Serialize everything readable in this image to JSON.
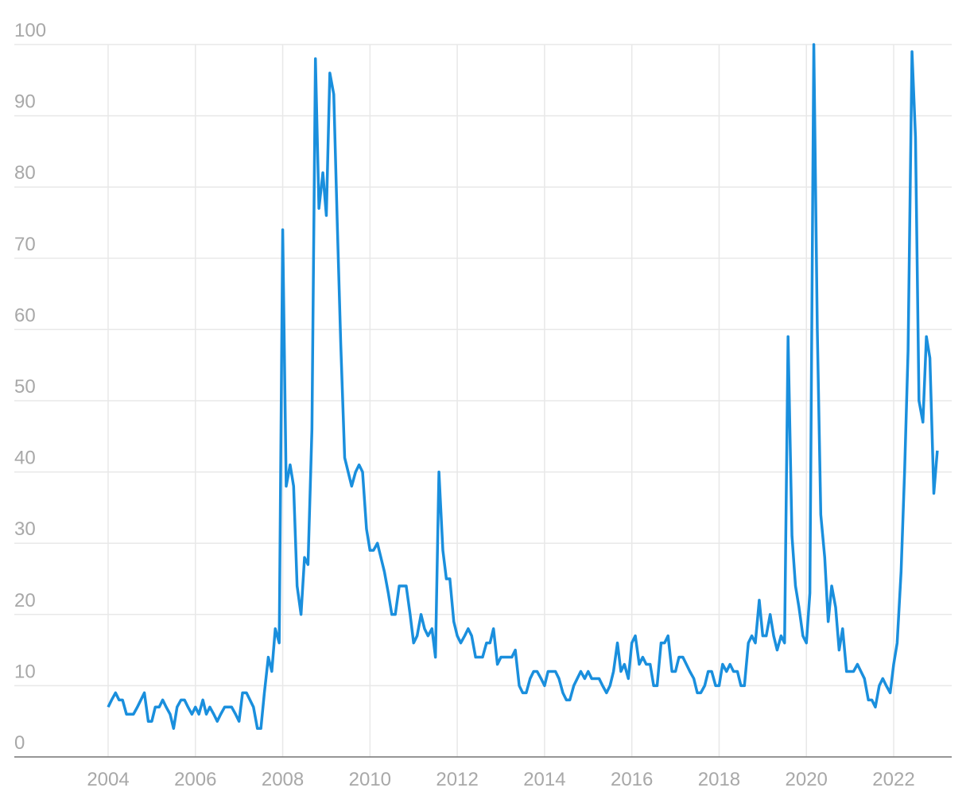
{
  "chart_data": {
    "type": "line",
    "x": [
      2004,
      2004.08,
      2004.17,
      2004.25,
      2004.33,
      2004.42,
      2004.5,
      2004.58,
      2004.67,
      2004.75,
      2004.83,
      2004.92,
      2005,
      2005.08,
      2005.17,
      2005.25,
      2005.33,
      2005.42,
      2005.5,
      2005.58,
      2005.67,
      2005.75,
      2005.83,
      2005.92,
      2006,
      2006.08,
      2006.17,
      2006.25,
      2006.33,
      2006.42,
      2006.5,
      2006.58,
      2006.67,
      2006.75,
      2006.83,
      2006.92,
      2007,
      2007.08,
      2007.17,
      2007.25,
      2007.33,
      2007.42,
      2007.5,
      2007.58,
      2007.67,
      2007.75,
      2007.83,
      2007.92,
      2008,
      2008.08,
      2008.17,
      2008.25,
      2008.33,
      2008.42,
      2008.5,
      2008.58,
      2008.67,
      2008.75,
      2008.83,
      2008.92,
      2009,
      2009.08,
      2009.17,
      2009.25,
      2009.33,
      2009.42,
      2009.5,
      2009.58,
      2009.67,
      2009.75,
      2009.83,
      2009.92,
      2010,
      2010.08,
      2010.17,
      2010.25,
      2010.33,
      2010.42,
      2010.5,
      2010.58,
      2010.67,
      2010.75,
      2010.83,
      2010.92,
      2011,
      2011.08,
      2011.17,
      2011.25,
      2011.33,
      2011.42,
      2011.5,
      2011.58,
      2011.67,
      2011.75,
      2011.83,
      2011.92,
      2012,
      2012.08,
      2012.17,
      2012.25,
      2012.33,
      2012.42,
      2012.5,
      2012.58,
      2012.67,
      2012.75,
      2012.83,
      2012.92,
      2013,
      2013.08,
      2013.17,
      2013.25,
      2013.33,
      2013.42,
      2013.5,
      2013.58,
      2013.67,
      2013.75,
      2013.83,
      2013.92,
      2014,
      2014.08,
      2014.17,
      2014.25,
      2014.33,
      2014.42,
      2014.5,
      2014.58,
      2014.67,
      2014.75,
      2014.83,
      2014.92,
      2015,
      2015.08,
      2015.17,
      2015.25,
      2015.33,
      2015.42,
      2015.5,
      2015.58,
      2015.67,
      2015.75,
      2015.83,
      2015.92,
      2016,
      2016.08,
      2016.17,
      2016.25,
      2016.33,
      2016.42,
      2016.5,
      2016.58,
      2016.67,
      2016.75,
      2016.83,
      2016.92,
      2017,
      2017.08,
      2017.17,
      2017.25,
      2017.33,
      2017.42,
      2017.5,
      2017.58,
      2017.67,
      2017.75,
      2017.83,
      2017.92,
      2018,
      2018.08,
      2018.17,
      2018.25,
      2018.33,
      2018.42,
      2018.5,
      2018.58,
      2018.67,
      2018.75,
      2018.83,
      2018.92,
      2019,
      2019.08,
      2019.17,
      2019.25,
      2019.33,
      2019.42,
      2019.5,
      2019.58,
      2019.67,
      2019.75,
      2019.83,
      2019.92,
      2020,
      2020.08,
      2020.17,
      2020.25,
      2020.33,
      2020.42,
      2020.5,
      2020.58,
      2020.67,
      2020.75,
      2020.83,
      2020.92,
      2021,
      2021.08,
      2021.17,
      2021.25,
      2021.33,
      2021.42,
      2021.5,
      2021.58,
      2021.67,
      2021.75,
      2021.83,
      2021.92,
      2022,
      2022.08,
      2022.17,
      2022.25,
      2022.33,
      2022.42,
      2022.5,
      2022.58,
      2022.67,
      2022.75,
      2022.83,
      2022.92,
      2023
    ],
    "series": [
      {
        "color": "#1a8fdd",
        "values": [
          7,
          8,
          9,
          8,
          8,
          6,
          6,
          6,
          7,
          8,
          9,
          5,
          5,
          7,
          7,
          8,
          7,
          6,
          4,
          7,
          8,
          8,
          7,
          6,
          7,
          6,
          8,
          6,
          7,
          6,
          5,
          6,
          7,
          7,
          7,
          6,
          5,
          9,
          9,
          8,
          7,
          4,
          4,
          9,
          14,
          12,
          18,
          16,
          74,
          38,
          41,
          38,
          24,
          20,
          28,
          27,
          46,
          98,
          77,
          82,
          76,
          96,
          93,
          75,
          58,
          42,
          40,
          38,
          40,
          41,
          40,
          32,
          29,
          29,
          30,
          28,
          26,
          23,
          20,
          20,
          24,
          24,
          24,
          20,
          16,
          17,
          20,
          18,
          17,
          18,
          14,
          40,
          29,
          25,
          25,
          19,
          17,
          16,
          17,
          18,
          17,
          14,
          14,
          14,
          16,
          16,
          18,
          13,
          14,
          14,
          14,
          14,
          15,
          10,
          9,
          9,
          11,
          12,
          12,
          11,
          10,
          12,
          12,
          12,
          11,
          9,
          8,
          8,
          10,
          11,
          12,
          11,
          12,
          11,
          11,
          11,
          10,
          9,
          10,
          12,
          16,
          12,
          13,
          11,
          16,
          17,
          13,
          14,
          13,
          13,
          10,
          10,
          16,
          16,
          17,
          12,
          12,
          14,
          14,
          13,
          12,
          11,
          9,
          9,
          10,
          12,
          12,
          10,
          10,
          13,
          12,
          13,
          12,
          12,
          10,
          10,
          16,
          17,
          16,
          22,
          17,
          17,
          20,
          17,
          15,
          17,
          16,
          59,
          31,
          24,
          21,
          17,
          16,
          23,
          100,
          60,
          34,
          28,
          19,
          24,
          21,
          15,
          18,
          12,
          12,
          12,
          13,
          12,
          11,
          8,
          8,
          7,
          10,
          11,
          10,
          9,
          13,
          16,
          26,
          40,
          57,
          99,
          87,
          50,
          47,
          59,
          56,
          37,
          43
        ]
      }
    ],
    "xlim": [
      2001.85,
      2023.33
    ],
    "xticks": [
      2004,
      2006,
      2008,
      2010,
      2012,
      2014,
      2016,
      2018,
      2020,
      2022
    ],
    "ylim": [
      0,
      100
    ],
    "yticks": [
      0,
      10,
      20,
      30,
      40,
      50,
      60,
      70,
      80,
      90,
      100
    ],
    "grid": true
  }
}
